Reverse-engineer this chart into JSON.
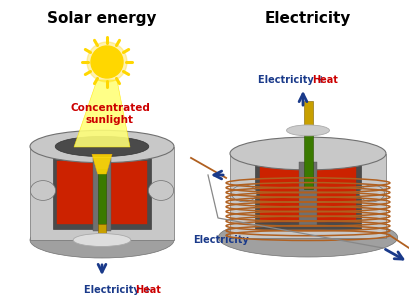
{
  "title_left": "Solar energy",
  "title_right": "Electricity",
  "label_sunlight_1": "Concentrated",
  "label_sunlight_2": "sunlight",
  "label_bottom_left_blue": "Electricity + ",
  "label_bottom_left_red": "Heat",
  "label_bottom_right": "Electricity",
  "label_top_right_blue": "Electricity + ",
  "label_top_right_red": "Heat",
  "bg_color": "#ffffff",
  "title_fontsize": 11,
  "label_fontsize": 7,
  "blue_color": "#1a3a8a",
  "red_word_color": "#cc0000",
  "sun_yellow": "#FFD700",
  "sun_orange": "#FFA500",
  "beam_yellow": "#FFFF66",
  "gray_light": "#c8c8c8",
  "gray_mid": "#a0a0a0",
  "gray_dark": "#707070",
  "inner_dark": "#4a4a4a",
  "device_red": "#cc2200",
  "rod_gold": "#c8a000",
  "rod_green": "#3a7a00",
  "coil_color": "#b06020",
  "arrow_color": "#1a3a8a"
}
